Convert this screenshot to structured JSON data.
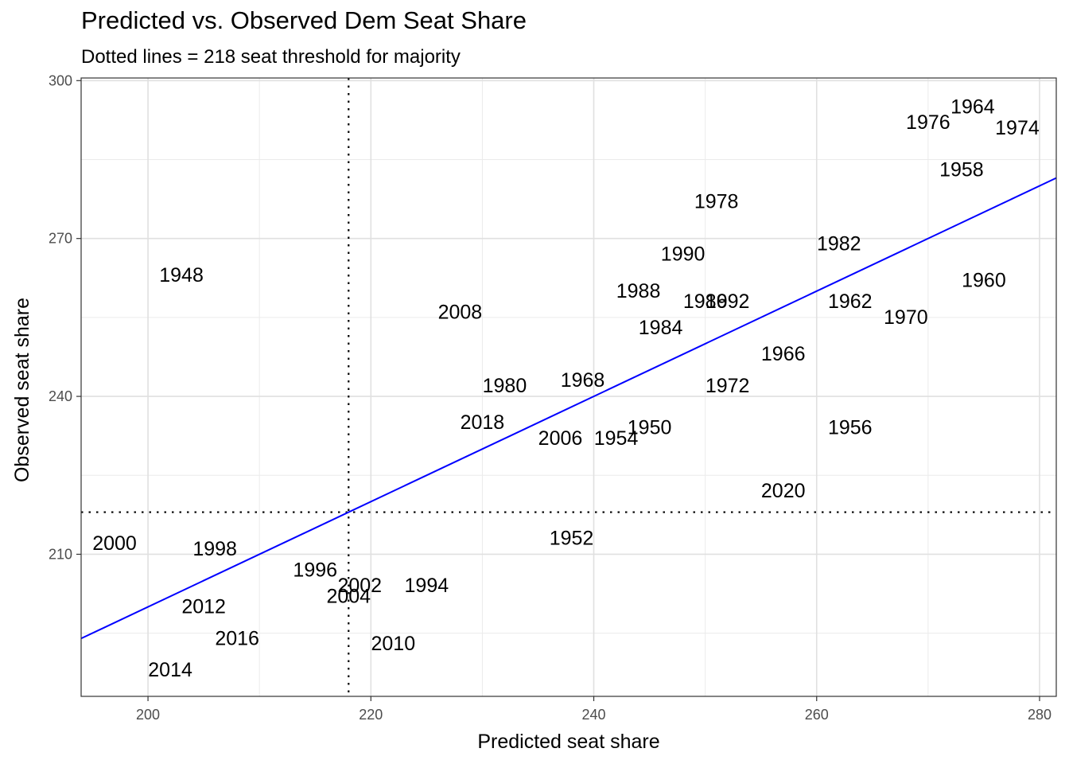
{
  "chart_data": {
    "type": "scatter",
    "title": "Predicted vs. Observed Dem Seat Share",
    "subtitle": "Dotted lines = 218 seat threshold for majority",
    "xlabel": "Predicted seat share",
    "ylabel": "Observed seat share",
    "xlim": [
      194,
      281.5
    ],
    "ylim": [
      183,
      300.5
    ],
    "x_ticks": [
      200,
      220,
      240,
      260,
      280
    ],
    "y_ticks": [
      210,
      240,
      270,
      300
    ],
    "grid": true,
    "reference_lines": {
      "x": 218,
      "y": 218,
      "style": "dotted"
    },
    "fit_line": {
      "color": "#0000ff",
      "slope": 1,
      "intercept": 0
    },
    "points": [
      {
        "label": "1948",
        "x": 203,
        "y": 263
      },
      {
        "label": "1950",
        "x": 245,
        "y": 234
      },
      {
        "label": "1952",
        "x": 238,
        "y": 213
      },
      {
        "label": "1954",
        "x": 242,
        "y": 232
      },
      {
        "label": "1956",
        "x": 263,
        "y": 234
      },
      {
        "label": "1958",
        "x": 273,
        "y": 283
      },
      {
        "label": "1960",
        "x": 275,
        "y": 262
      },
      {
        "label": "1962",
        "x": 263,
        "y": 258
      },
      {
        "label": "1964",
        "x": 274,
        "y": 295
      },
      {
        "label": "1966",
        "x": 257,
        "y": 248
      },
      {
        "label": "1968",
        "x": 239,
        "y": 243
      },
      {
        "label": "1970",
        "x": 268,
        "y": 255
      },
      {
        "label": "1972",
        "x": 252,
        "y": 242
      },
      {
        "label": "1974",
        "x": 278,
        "y": 291
      },
      {
        "label": "1976",
        "x": 270,
        "y": 292
      },
      {
        "label": "1978",
        "x": 251,
        "y": 277
      },
      {
        "label": "1980",
        "x": 232,
        "y": 242
      },
      {
        "label": "1982",
        "x": 262,
        "y": 269
      },
      {
        "label": "1984",
        "x": 246,
        "y": 253
      },
      {
        "label": "1986",
        "x": 250,
        "y": 258
      },
      {
        "label": "1988",
        "x": 244,
        "y": 260
      },
      {
        "label": "1990",
        "x": 248,
        "y": 267
      },
      {
        "label": "1992",
        "x": 252,
        "y": 258
      },
      {
        "label": "1994",
        "x": 225,
        "y": 204
      },
      {
        "label": "1996",
        "x": 215,
        "y": 207
      },
      {
        "label": "1998",
        "x": 206,
        "y": 211
      },
      {
        "label": "2000",
        "x": 197,
        "y": 212
      },
      {
        "label": "2002",
        "x": 219,
        "y": 204
      },
      {
        "label": "2004",
        "x": 218,
        "y": 202
      },
      {
        "label": "2006",
        "x": 237,
        "y": 232
      },
      {
        "label": "2008",
        "x": 228,
        "y": 256
      },
      {
        "label": "2010",
        "x": 222,
        "y": 193
      },
      {
        "label": "2012",
        "x": 205,
        "y": 200
      },
      {
        "label": "2014",
        "x": 202,
        "y": 188
      },
      {
        "label": "2016",
        "x": 208,
        "y": 194
      },
      {
        "label": "2018",
        "x": 230,
        "y": 235
      },
      {
        "label": "2020",
        "x": 257,
        "y": 222
      }
    ]
  }
}
